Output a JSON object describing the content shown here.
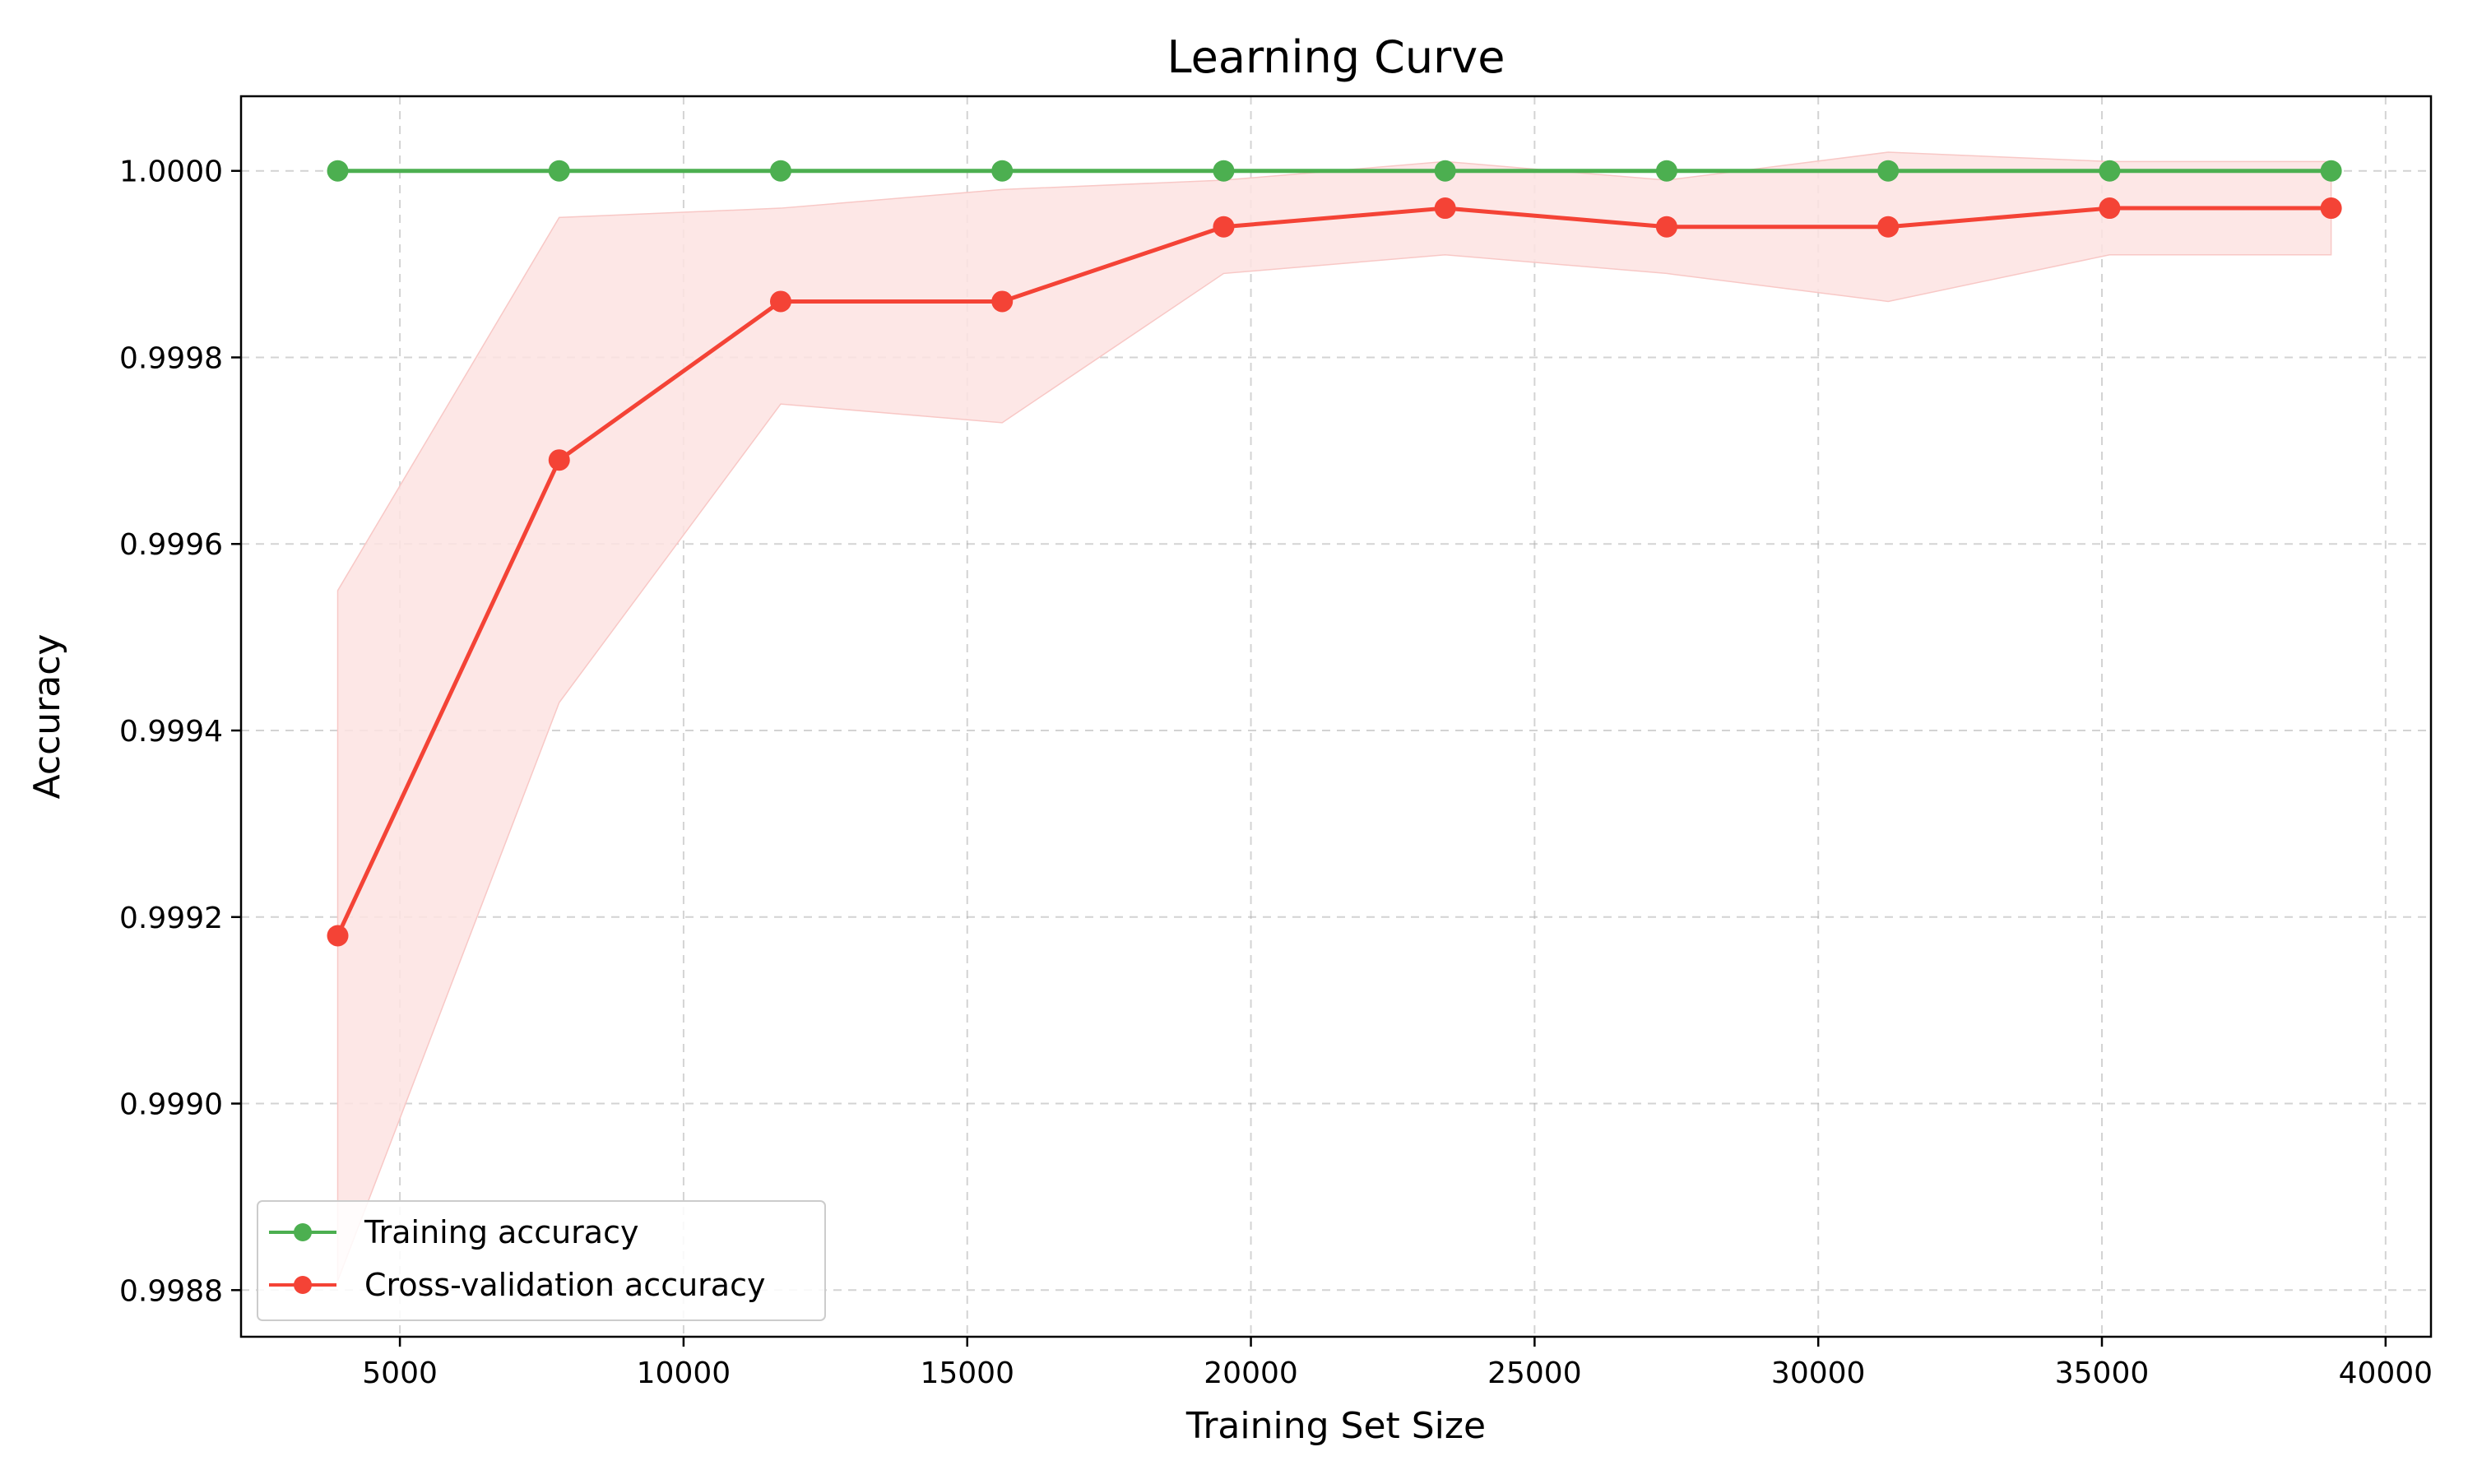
{
  "chart_data": {
    "type": "line",
    "title": "Learning Curve",
    "xlabel": "Training Set Size",
    "ylabel": "Accuracy",
    "xlim": [
      2200,
      40800
    ],
    "ylim": [
      0.99875,
      1.00008
    ],
    "xticks": [
      5000,
      10000,
      15000,
      20000,
      25000,
      30000,
      35000,
      40000
    ],
    "xtick_labels": [
      "5000",
      "10000",
      "15000",
      "20000",
      "25000",
      "30000",
      "35000",
      "40000"
    ],
    "yticks": [
      0.9988,
      0.999,
      0.9992,
      0.9994,
      0.9996,
      0.9998,
      1.0
    ],
    "ytick_labels": [
      "0.9988",
      "0.9990",
      "0.9992",
      "0.9994",
      "0.9996",
      "0.9998",
      "1.0000"
    ],
    "grid": true,
    "legend_position": "lower-left",
    "x": [
      3904,
      7808,
      11712,
      15616,
      19520,
      23424,
      27328,
      31232,
      35136,
      39040
    ],
    "series": [
      {
        "name": "Training accuracy",
        "color": "#4caf50",
        "marker": "circle",
        "values": [
          1.0,
          1.0,
          1.0,
          1.0,
          1.0,
          1.0,
          1.0,
          1.0,
          1.0,
          1.0
        ],
        "band_upper": [
          1.0,
          1.0,
          1.0,
          1.0,
          1.0,
          1.0,
          1.0,
          1.0,
          1.0,
          1.0
        ],
        "band_lower": [
          1.0,
          1.0,
          1.0,
          1.0,
          1.0,
          1.0,
          1.0,
          1.0,
          1.0,
          1.0
        ]
      },
      {
        "name": "Cross-validation accuracy",
        "color": "#f44336",
        "band_color": "#fde3e2",
        "marker": "circle",
        "values": [
          0.99918,
          0.99969,
          0.99986,
          0.99986,
          0.99994,
          0.99996,
          0.99994,
          0.99994,
          0.99996,
          0.99996
        ],
        "band_upper": [
          0.99955,
          0.99995,
          0.99996,
          0.99998,
          0.99999,
          1.00001,
          0.99999,
          1.00002,
          1.00001,
          1.00001
        ],
        "band_lower": [
          0.99881,
          0.99943,
          0.99975,
          0.99973,
          0.99989,
          0.99991,
          0.99989,
          0.99986,
          0.99991,
          0.99991
        ]
      }
    ]
  }
}
